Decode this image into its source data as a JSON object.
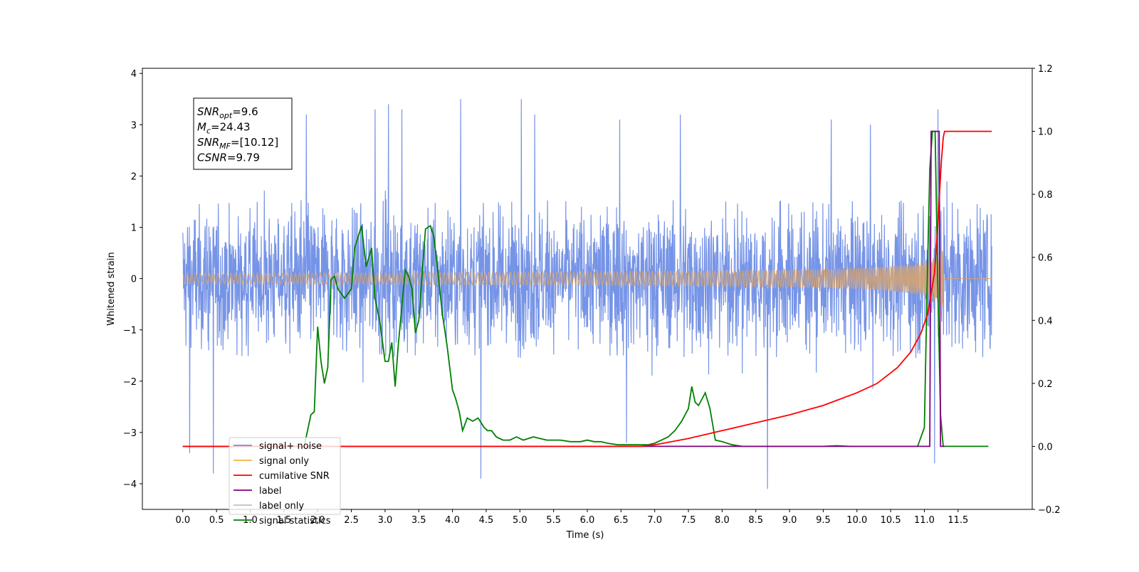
{
  "chart_data": {
    "type": "line",
    "xlabel": "Time (s)",
    "ylabel": "Whitened strain",
    "xlim": [
      -0.6,
      12.6
    ],
    "ylim": [
      -4.5,
      4.1
    ],
    "y2lim": [
      -0.2,
      1.2
    ],
    "x_ticks": [
      0.0,
      0.5,
      1.0,
      1.5,
      2.0,
      2.5,
      3.0,
      3.5,
      4.0,
      4.5,
      5.0,
      5.5,
      6.0,
      6.5,
      7.0,
      7.5,
      8.0,
      8.5,
      9.0,
      9.5,
      10.0,
      10.5,
      11.0,
      11.5
    ],
    "x_tick_labels": [
      "0.0",
      "0.5",
      "1.0",
      "1.5",
      "2.0",
      "2.5",
      "3.0",
      "3.5",
      "4.0",
      "4.5",
      "5.0",
      "5.5",
      "6.0",
      "6.5",
      "7.0",
      "7.5",
      "8.0",
      "8.5",
      "9.0",
      "9.5",
      "10.0",
      "10.5",
      "11.0",
      "11.5"
    ],
    "y_ticks": [
      4,
      3,
      2,
      1,
      0,
      -1,
      -2,
      -3,
      -4
    ],
    "y_tick_labels": [
      "4",
      "3",
      "2",
      "1",
      "0",
      "−1",
      "−2",
      "−3",
      "−4"
    ],
    "y2_ticks": [
      1.2,
      1.0,
      0.8,
      0.6,
      0.4,
      0.2,
      0.0,
      -0.2
    ],
    "y2_tick_labels": [
      "1.2",
      "1.0",
      "0.8",
      "0.6",
      "0.4",
      "0.2",
      "0.0",
      "−0.2"
    ],
    "annotation": {
      "lines": [
        {
          "base": "SNR",
          "sub": "opt",
          "value": "=9.6"
        },
        {
          "base": "M",
          "sub": "c",
          "value": "=24.43"
        },
        {
          "base": "SNR",
          "sub": "MF",
          "value": "=[10.12]"
        },
        {
          "base": "CSNR",
          "sub": "",
          "value": "=9.79"
        }
      ]
    },
    "legend": {
      "location": "lower-left",
      "entries": [
        {
          "label": "signal+ noise",
          "color": "#6f8ee6"
        },
        {
          "label": "signal only",
          "color": "#f5b041"
        },
        {
          "label": "cumilative SNR",
          "color": "#ff0000"
        },
        {
          "label": "label",
          "color": "#800080"
        },
        {
          "label": "label only",
          "color": "#c0c0c0"
        },
        {
          "label": "signal statistics",
          "color": "#008000"
        }
      ]
    },
    "series": [
      {
        "name": "signal+ noise",
        "axis": "left",
        "color": "#6f8ee6",
        "x_range": [
          0.0,
          12.0
        ],
        "envelope": 1.55,
        "spike_x": [
          0.1,
          0.45,
          1.83,
          2.85,
          3.05,
          3.25,
          4.12,
          4.42,
          5.02,
          5.22,
          6.48,
          6.58,
          7.38,
          8.67,
          9.62,
          10.2,
          11.15,
          11.2
        ],
        "spike_y": [
          -3.4,
          -3.8,
          3.2,
          3.3,
          3.4,
          3.3,
          3.5,
          -3.9,
          3.5,
          3.2,
          3.1,
          -3.2,
          3.2,
          -4.1,
          3.1,
          3.0,
          -3.6,
          3.3
        ]
      },
      {
        "name": "signal only",
        "axis": "left",
        "color": "#d4a373",
        "chirp": {
          "t_start": 0.0,
          "t_merge": 11.28,
          "t_end": 12.0,
          "peak_amplitude": 0.55
        }
      },
      {
        "name": "cumilative SNR",
        "axis": "right",
        "color": "#ff0000",
        "x": [
          0.0,
          6.8,
          7.0,
          7.5,
          8.0,
          8.5,
          9.0,
          9.5,
          10.0,
          10.3,
          10.6,
          10.8,
          10.95,
          11.05,
          11.15,
          11.2,
          11.25,
          11.28,
          11.3,
          12.0
        ],
        "values": [
          0.0,
          0.0,
          0.005,
          0.025,
          0.05,
          0.075,
          0.1,
          0.13,
          0.17,
          0.2,
          0.25,
          0.3,
          0.36,
          0.42,
          0.55,
          0.7,
          0.9,
          0.98,
          1.0,
          1.0
        ]
      },
      {
        "name": "label",
        "axis": "right",
        "color": "#800080",
        "x": [
          0.0,
          11.08,
          11.1,
          11.22,
          11.24,
          11.3
        ],
        "values": [
          0.0,
          0.0,
          1.0,
          1.0,
          0.0,
          0.0
        ]
      },
      {
        "name": "signal statistics",
        "axis": "right",
        "color": "#008000",
        "x": [
          0.0,
          1.8,
          1.9,
          1.95,
          2.0,
          2.05,
          2.1,
          2.15,
          2.2,
          2.25,
          2.3,
          2.4,
          2.5,
          2.55,
          2.65,
          2.72,
          2.8,
          2.85,
          2.92,
          3.0,
          3.05,
          3.1,
          3.15,
          3.2,
          3.3,
          3.35,
          3.4,
          3.45,
          3.5,
          3.6,
          3.67,
          3.72,
          3.78,
          3.85,
          3.92,
          4.0,
          4.05,
          4.1,
          4.15,
          4.22,
          4.3,
          4.38,
          4.47,
          4.52,
          4.58,
          4.65,
          4.75,
          4.85,
          4.95,
          5.05,
          5.2,
          5.3,
          5.4,
          5.5,
          5.6,
          5.75,
          5.9,
          6.0,
          6.1,
          6.2,
          6.3,
          6.45,
          6.6,
          6.8,
          6.9,
          7.0,
          7.1,
          7.2,
          7.3,
          7.4,
          7.5,
          7.55,
          7.6,
          7.65,
          7.7,
          7.75,
          7.82,
          7.9,
          8.0,
          8.15,
          8.3,
          8.5,
          9.5,
          9.7,
          9.9,
          10.9,
          10.95,
          11.0,
          11.04,
          11.08,
          11.12,
          11.16,
          11.2,
          11.24,
          11.28,
          11.3,
          11.95
        ],
        "values": [
          0.0,
          0.0,
          0.1,
          0.11,
          0.38,
          0.27,
          0.2,
          0.25,
          0.53,
          0.54,
          0.5,
          0.47,
          0.5,
          0.63,
          0.7,
          0.57,
          0.63,
          0.47,
          0.4,
          0.27,
          0.27,
          0.33,
          0.19,
          0.33,
          0.56,
          0.54,
          0.5,
          0.36,
          0.4,
          0.69,
          0.7,
          0.67,
          0.56,
          0.42,
          0.32,
          0.18,
          0.15,
          0.11,
          0.05,
          0.09,
          0.08,
          0.09,
          0.06,
          0.05,
          0.05,
          0.03,
          0.02,
          0.02,
          0.03,
          0.02,
          0.03,
          0.025,
          0.02,
          0.02,
          0.02,
          0.015,
          0.015,
          0.02,
          0.015,
          0.015,
          0.01,
          0.005,
          0.005,
          0.005,
          0.005,
          0.01,
          0.02,
          0.03,
          0.05,
          0.08,
          0.12,
          0.19,
          0.14,
          0.13,
          0.15,
          0.17,
          0.12,
          0.02,
          0.015,
          0.005,
          0.0,
          0.0,
          0.0,
          0.002,
          0.0,
          0.0,
          0.03,
          0.06,
          0.5,
          0.88,
          1.0,
          1.0,
          0.5,
          0.1,
          0.0,
          0.0,
          0.0
        ]
      }
    ]
  }
}
